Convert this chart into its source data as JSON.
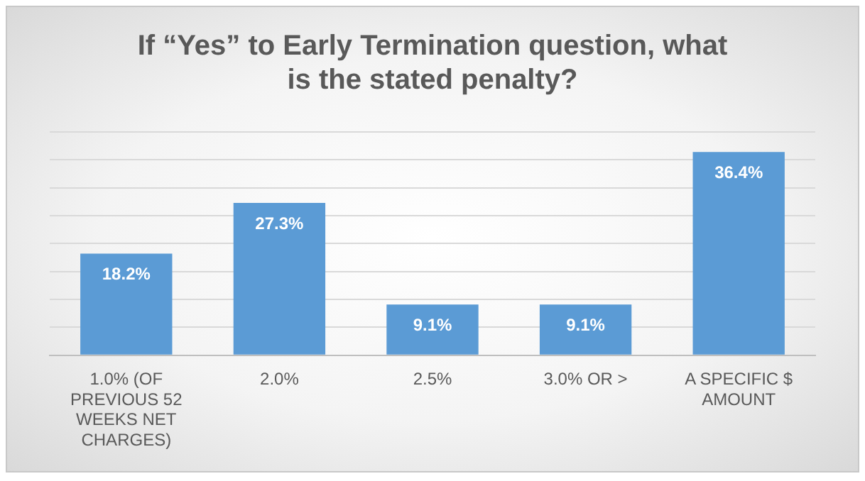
{
  "chart_data": {
    "type": "bar",
    "title": "If “Yes” to Early Termination question, what is the stated penalty?",
    "categories": [
      "1.0% (OF PREVIOUS 52 WEEKS NET CHARGES)",
      "2.0%",
      "2.5%",
      "3.0% OR >",
      "A SPECIFIC $ AMOUNT"
    ],
    "values": [
      18.2,
      27.3,
      9.1,
      9.1,
      36.4
    ],
    "value_labels": [
      "18.2%",
      "27.3%",
      "9.1%",
      "9.1%",
      "36.4%"
    ],
    "color": "#5b9bd5",
    "ylim": [
      0,
      40
    ],
    "yticks": [
      {
        "value": 0,
        "label": null
      },
      {
        "value": 5,
        "label": null
      },
      {
        "value": 10,
        "label": null
      },
      {
        "value": 15,
        "label": null
      },
      {
        "value": 20,
        "label": null
      },
      {
        "value": 25,
        "label": null
      },
      {
        "value": 30,
        "label": null
      },
      {
        "value": 35,
        "label": null
      },
      {
        "value": 40,
        "label": null
      }
    ],
    "grid": "y",
    "legend": false,
    "tick_labels": "x"
  }
}
